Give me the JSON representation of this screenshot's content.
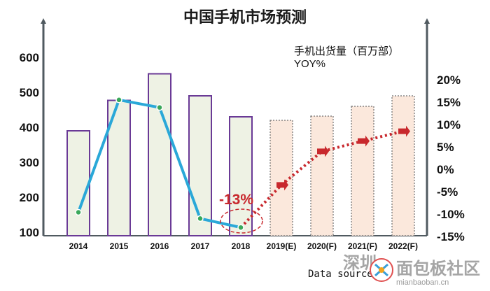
{
  "chart_data": {
    "type": "bar",
    "title": "中国手机市场预测",
    "categories": [
      "2014",
      "2015",
      "2016",
      "2017",
      "2018",
      "2019(E)",
      "2020(F)",
      "2021(F)",
      "2022(F)"
    ],
    "forecast_from_index": 5,
    "left_axis": {
      "ticks": [
        "100",
        "200",
        "300",
        "400",
        "500",
        "600"
      ],
      "ylim": [
        0,
        700
      ]
    },
    "right_axis": {
      "ticks": [
        "-15%",
        "-10%",
        "-5%",
        "0%",
        "5%",
        "10%",
        "15%",
        "20%"
      ],
      "ylim": [
        -15,
        30
      ]
    },
    "series": [
      {
        "name": "手机出货量（百万部）",
        "kind": "bar",
        "axis": "left",
        "values": [
          390,
          477,
          553,
          490,
          430,
          420,
          432,
          460,
          490
        ]
      },
      {
        "name": "YOY%",
        "kind": "line",
        "axis": "right",
        "values": [
          -9.6,
          15.5,
          13.8,
          -11,
          -13,
          -3.5,
          4,
          6.3,
          8.5
        ]
      }
    ],
    "annotation": "-13%",
    "legend_position": "top-right",
    "grid": false,
    "colors": {
      "bar_actual_fill": "#eef2e4",
      "bar_actual_stroke": "#6a3a96",
      "bar_forecast_fill": "#fbe8dc",
      "bar_forecast_stroke": "#6f6f6f",
      "line_actual": "#2aa8d8",
      "line_forecast": "#c8282d",
      "marker_actual": "#3aa85a",
      "axis": "#505a60"
    }
  },
  "footer": {
    "source_text": "Data source",
    "watermark_a": "深圳",
    "watermark_b": "面包板社区",
    "watermark_c": "mianbaoban.cn"
  }
}
